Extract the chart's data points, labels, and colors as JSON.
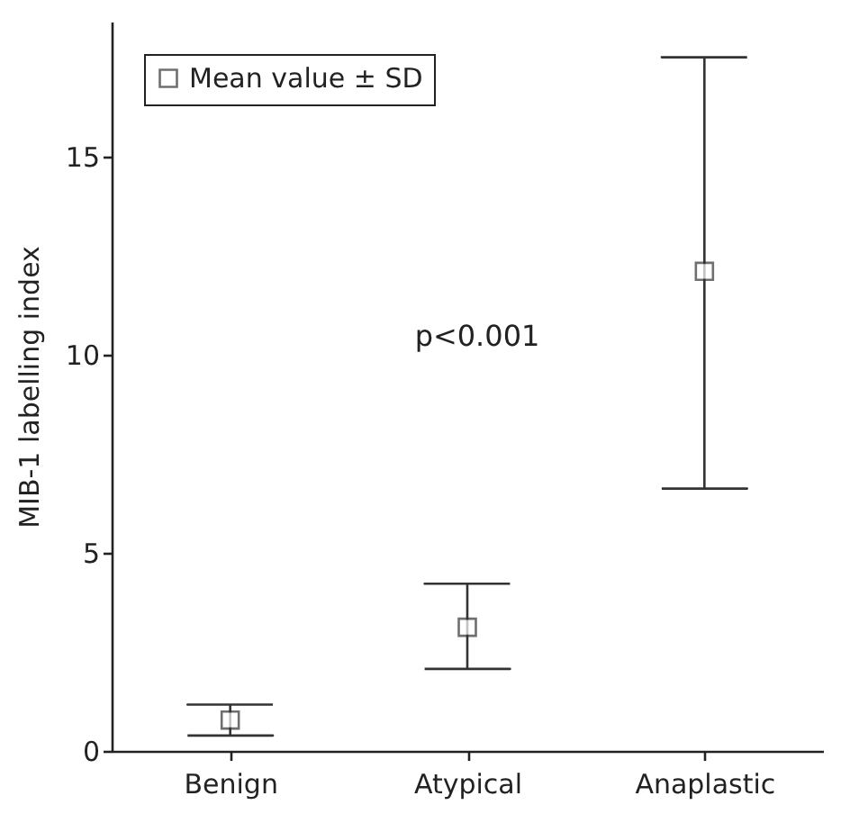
{
  "chart_data": {
    "type": "scatter",
    "ylabel": "MIB-1 labelling index",
    "categories": [
      "Benign",
      "Atypical",
      "Anaplastic"
    ],
    "series": [
      {
        "name": "Mean value ± SD",
        "color": "#333333",
        "values": [
          0.78,
          3.12,
          12.1
        ],
        "errors": [
          [
            0.39,
            1.17
          ],
          [
            2.07,
            4.22
          ],
          [
            6.62,
            17.5
          ]
        ]
      }
    ],
    "ylim": [
      0,
      18.4
    ],
    "yticks": [
      0,
      5,
      10,
      15
    ],
    "marker": "square",
    "grid": false,
    "legend": "top left",
    "annotations": [
      "p<0.001"
    ]
  }
}
